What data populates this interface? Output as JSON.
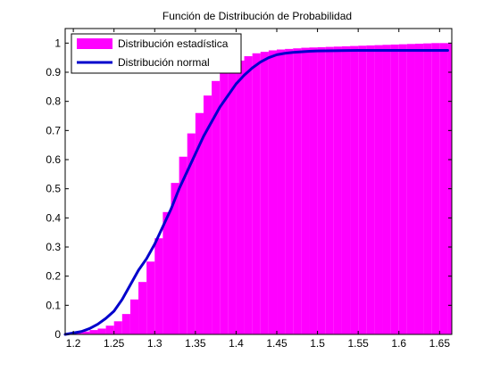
{
  "chart_data": {
    "type": "area",
    "title": "Función de Distribución de Probabilidad",
    "xlabel": "",
    "ylabel": "",
    "xlim": [
      1.19,
      1.665
    ],
    "ylim": [
      0,
      1.05
    ],
    "xticks": [
      1.2,
      1.25,
      1.3,
      1.35,
      1.4,
      1.45,
      1.5,
      1.55,
      1.6,
      1.65
    ],
    "xtick_labels": [
      "1.2",
      "1.25",
      "1.3",
      "1.35",
      "1.4",
      "1.45",
      "1.5",
      "1.55",
      "1.6",
      "1.65"
    ],
    "yticks": [
      0,
      0.1,
      0.2,
      0.3,
      0.4,
      0.5,
      0.6,
      0.7,
      0.8,
      0.9,
      1
    ],
    "ytick_labels": [
      "0",
      "0.1",
      "0.2",
      "0.3",
      "0.4",
      "0.5",
      "0.6",
      "0.7",
      "0.8",
      "0.9",
      "1"
    ],
    "legend_position": "top-left",
    "series": [
      {
        "name": "Distribución estadística",
        "kind": "bars",
        "color": "#ff00ff",
        "x": [
          1.19,
          1.2,
          1.21,
          1.22,
          1.23,
          1.24,
          1.25,
          1.26,
          1.27,
          1.28,
          1.29,
          1.3,
          1.31,
          1.32,
          1.33,
          1.34,
          1.35,
          1.36,
          1.37,
          1.38,
          1.39,
          1.4,
          1.41,
          1.42,
          1.43,
          1.44,
          1.45,
          1.46,
          1.47,
          1.48,
          1.49,
          1.5,
          1.51,
          1.52,
          1.53,
          1.54,
          1.55,
          1.56,
          1.57,
          1.58,
          1.59,
          1.6,
          1.61,
          1.62,
          1.63,
          1.64,
          1.65,
          1.66
        ],
        "y": [
          0.0,
          0.005,
          0.01,
          0.015,
          0.02,
          0.03,
          0.045,
          0.07,
          0.12,
          0.18,
          0.25,
          0.33,
          0.42,
          0.52,
          0.61,
          0.69,
          0.76,
          0.82,
          0.87,
          0.9,
          0.92,
          0.94,
          0.955,
          0.965,
          0.97,
          0.975,
          0.978,
          0.98,
          0.982,
          0.984,
          0.985,
          0.986,
          0.987,
          0.988,
          0.989,
          0.99,
          0.991,
          0.992,
          0.993,
          0.994,
          0.995,
          0.996,
          0.997,
          0.998,
          0.999,
          1.0,
          1.0,
          1.0
        ]
      },
      {
        "name": "Distribución normal",
        "kind": "line",
        "color": "#0000cc",
        "x": [
          1.19,
          1.2,
          1.21,
          1.22,
          1.23,
          1.24,
          1.25,
          1.26,
          1.27,
          1.28,
          1.29,
          1.3,
          1.31,
          1.32,
          1.33,
          1.34,
          1.35,
          1.36,
          1.37,
          1.38,
          1.39,
          1.4,
          1.41,
          1.42,
          1.43,
          1.44,
          1.45,
          1.46,
          1.47,
          1.48,
          1.49,
          1.5,
          1.52,
          1.55,
          1.6,
          1.65,
          1.66
        ],
        "y": [
          0.0,
          0.005,
          0.01,
          0.02,
          0.035,
          0.055,
          0.08,
          0.12,
          0.17,
          0.22,
          0.26,
          0.31,
          0.37,
          0.43,
          0.5,
          0.56,
          0.62,
          0.68,
          0.73,
          0.78,
          0.82,
          0.86,
          0.89,
          0.915,
          0.935,
          0.95,
          0.96,
          0.965,
          0.968,
          0.97,
          0.972,
          0.973,
          0.974,
          0.975,
          0.975,
          0.975,
          0.975
        ]
      }
    ]
  }
}
